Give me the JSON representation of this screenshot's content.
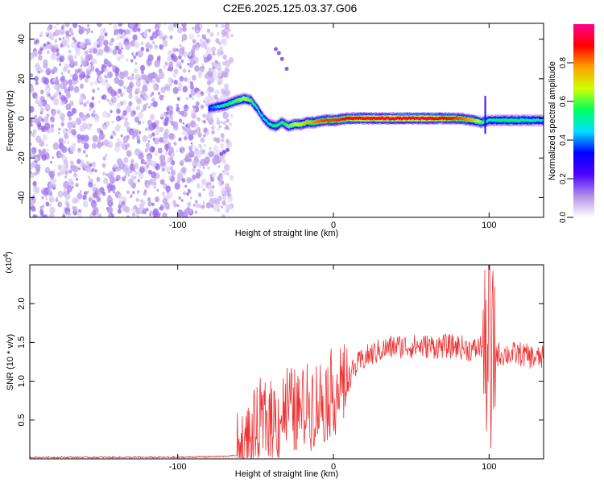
{
  "chart_data": [
    {
      "type": "heatmap",
      "title": "C2E6.2025.125.03.37.G06",
      "xlabel": "Height of straight line (km)",
      "ylabel": "Frequency (Hz)",
      "xlim": [
        -195,
        135
      ],
      "ylim": [
        -50,
        48
      ],
      "xticks": [
        -100,
        0,
        100
      ],
      "xtick_labels": [
        "-100",
        "0",
        "100"
      ],
      "yticks": [
        -40,
        -20,
        0,
        20,
        40
      ],
      "ytick_labels": [
        "-40",
        "-20",
        "0",
        "20",
        "40"
      ],
      "colorbar": {
        "label": "Normalized spectral amplitude",
        "ticks": [
          0.0,
          0.2,
          0.4,
          0.6,
          0.8
        ],
        "tick_labels": [
          "0.0",
          "0.2",
          "0.4",
          "0.6",
          "0.8"
        ],
        "colors": [
          "#ffffff",
          "#b090e8",
          "#5000ff",
          "#0000ff",
          "#00e0ff",
          "#00ff60",
          "#d0ff00",
          "#ffa000",
          "#ff0000",
          "#ff0090"
        ]
      },
      "noise_region_x": [
        -195,
        -65
      ],
      "ridge": {
        "x": [
          -80,
          -74,
          -68,
          -62,
          -57,
          -53,
          -49,
          -45,
          -41,
          -37,
          -33,
          -29,
          -25,
          -21,
          -17,
          -12,
          -6,
          0,
          10,
          20,
          30,
          40,
          50,
          60,
          70,
          80,
          90,
          95,
          100,
          110,
          120,
          130,
          135
        ],
        "y": [
          5,
          6,
          7,
          9,
          10,
          9,
          5,
          0,
          -3,
          -4,
          -2,
          -4,
          -3,
          -3,
          -2,
          -2,
          -1,
          -1,
          0,
          0,
          0,
          0,
          0,
          0,
          0,
          0,
          -1,
          -2,
          -1,
          -1,
          -1,
          -1,
          -1
        ],
        "amplitude": [
          0.35,
          0.45,
          0.55,
          0.6,
          0.65,
          0.6,
          0.5,
          0.45,
          0.5,
          0.55,
          0.55,
          0.6,
          0.65,
          0.7,
          0.75,
          0.8,
          0.85,
          0.85,
          0.9,
          0.95,
          0.95,
          0.95,
          0.95,
          0.95,
          0.9,
          0.85,
          0.75,
          0.6,
          0.5,
          0.55,
          0.55,
          0.5,
          0.45
        ]
      },
      "colors": {
        "axis": "#000000"
      }
    },
    {
      "type": "line",
      "xlabel": "Height of straight line (km)",
      "ylabel": "SNR (10 * v/v)",
      "multiplier_label": "(x10",
      "multiplier_exp": "4",
      "multiplier_close": ")",
      "xlim": [
        -195,
        135
      ],
      "ylim": [
        0,
        2.5
      ],
      "xticks": [
        -100,
        0,
        100
      ],
      "xtick_labels": [
        "-100",
        "0",
        "100"
      ],
      "yticks": [
        0.5,
        1.0,
        1.5,
        2.0
      ],
      "ytick_labels": [
        "0.5",
        "1.0",
        "1.5",
        "2.0"
      ],
      "series": [
        {
          "color": "#ee3333",
          "x": [
            -195,
            -150,
            -100,
            -70,
            -60,
            -50,
            -45,
            -40,
            -35,
            -30,
            -25,
            -20,
            -15,
            -10,
            -5,
            0,
            5,
            10,
            15,
            20,
            25,
            30,
            40,
            50,
            60,
            70,
            80,
            90,
            95,
            98,
            100,
            101,
            102,
            105,
            110,
            120,
            130,
            135
          ],
          "y": [
            0.02,
            0.02,
            0.02,
            0.03,
            0.05,
            0.3,
            0.5,
            0.55,
            0.5,
            0.7,
            0.6,
            0.6,
            0.75,
            0.7,
            0.8,
            0.85,
            0.95,
            1.05,
            1.2,
            1.3,
            1.35,
            1.4,
            1.45,
            1.45,
            1.45,
            1.45,
            1.45,
            1.4,
            1.45,
            1.3,
            1.5,
            0.5,
            1.4,
            1.35,
            1.35,
            1.35,
            1.3,
            1.3
          ]
        }
      ],
      "colors": {
        "axis": "#000000"
      }
    }
  ]
}
